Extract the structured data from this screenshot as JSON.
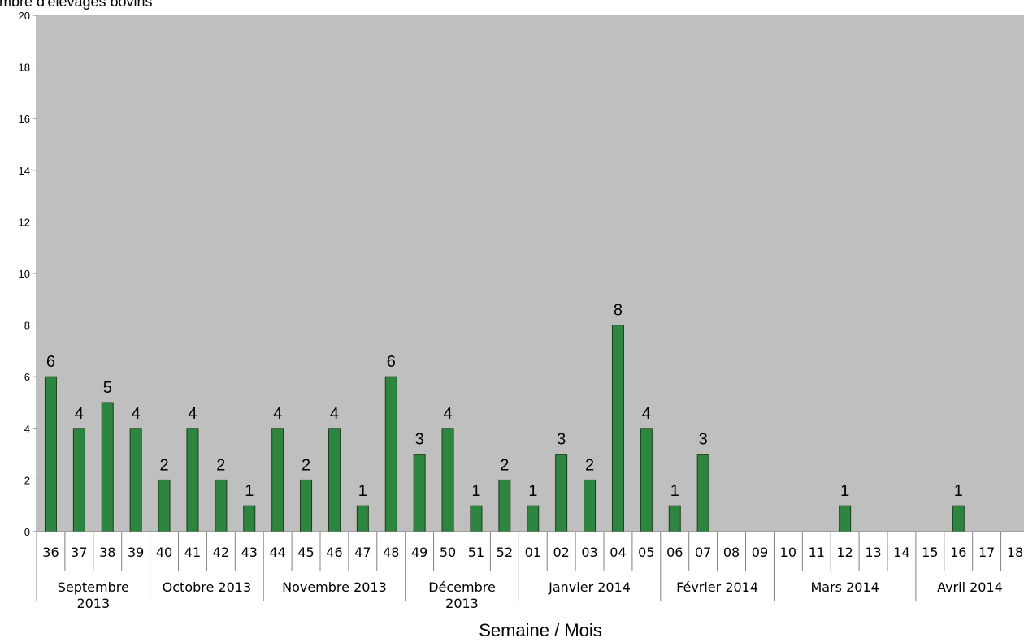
{
  "chart_data": {
    "type": "bar",
    "ylabel": "Nombre d'élevages bovins",
    "xlabel": "Semaine /  Mois",
    "ylim": [
      0,
      20
    ],
    "y_ticks": [
      0,
      2,
      4,
      6,
      8,
      10,
      12,
      14,
      16,
      18,
      20
    ],
    "grid": false,
    "legend": "none",
    "categories": [
      "36",
      "37",
      "38",
      "39",
      "40",
      "41",
      "42",
      "43",
      "44",
      "45",
      "46",
      "47",
      "48",
      "49",
      "50",
      "51",
      "52",
      "01",
      "02",
      "03",
      "04",
      "05",
      "06",
      "07",
      "08",
      "09",
      "10",
      "11",
      "12",
      "13",
      "14",
      "15",
      "16",
      "17",
      "18"
    ],
    "values": [
      6,
      4,
      5,
      4,
      2,
      4,
      2,
      1,
      4,
      2,
      4,
      1,
      6,
      3,
      4,
      1,
      2,
      1,
      3,
      2,
      8,
      4,
      1,
      3,
      0,
      0,
      0,
      0,
      1,
      0,
      0,
      0,
      1,
      0,
      0
    ],
    "months": [
      {
        "lines": [
          "Septembre",
          "2013"
        ],
        "start": 0,
        "count": 4
      },
      {
        "lines": [
          "Octobre 2013"
        ],
        "start": 4,
        "count": 4
      },
      {
        "lines": [
          "Novembre 2013"
        ],
        "start": 8,
        "count": 5
      },
      {
        "lines": [
          "Décembre",
          "2013"
        ],
        "start": 13,
        "count": 4
      },
      {
        "lines": [
          "Janvier 2014"
        ],
        "start": 17,
        "count": 5
      },
      {
        "lines": [
          "Février 2014"
        ],
        "start": 22,
        "count": 4
      },
      {
        "lines": [
          "Mars 2014"
        ],
        "start": 26,
        "count": 5
      },
      {
        "lines": [
          "Avril 2014"
        ],
        "start": 31,
        "count": 4
      }
    ],
    "colors": {
      "bar": "#2e8540",
      "bar_stroke": "#1a3d1a",
      "plot_background": "#bfbfbf"
    }
  }
}
